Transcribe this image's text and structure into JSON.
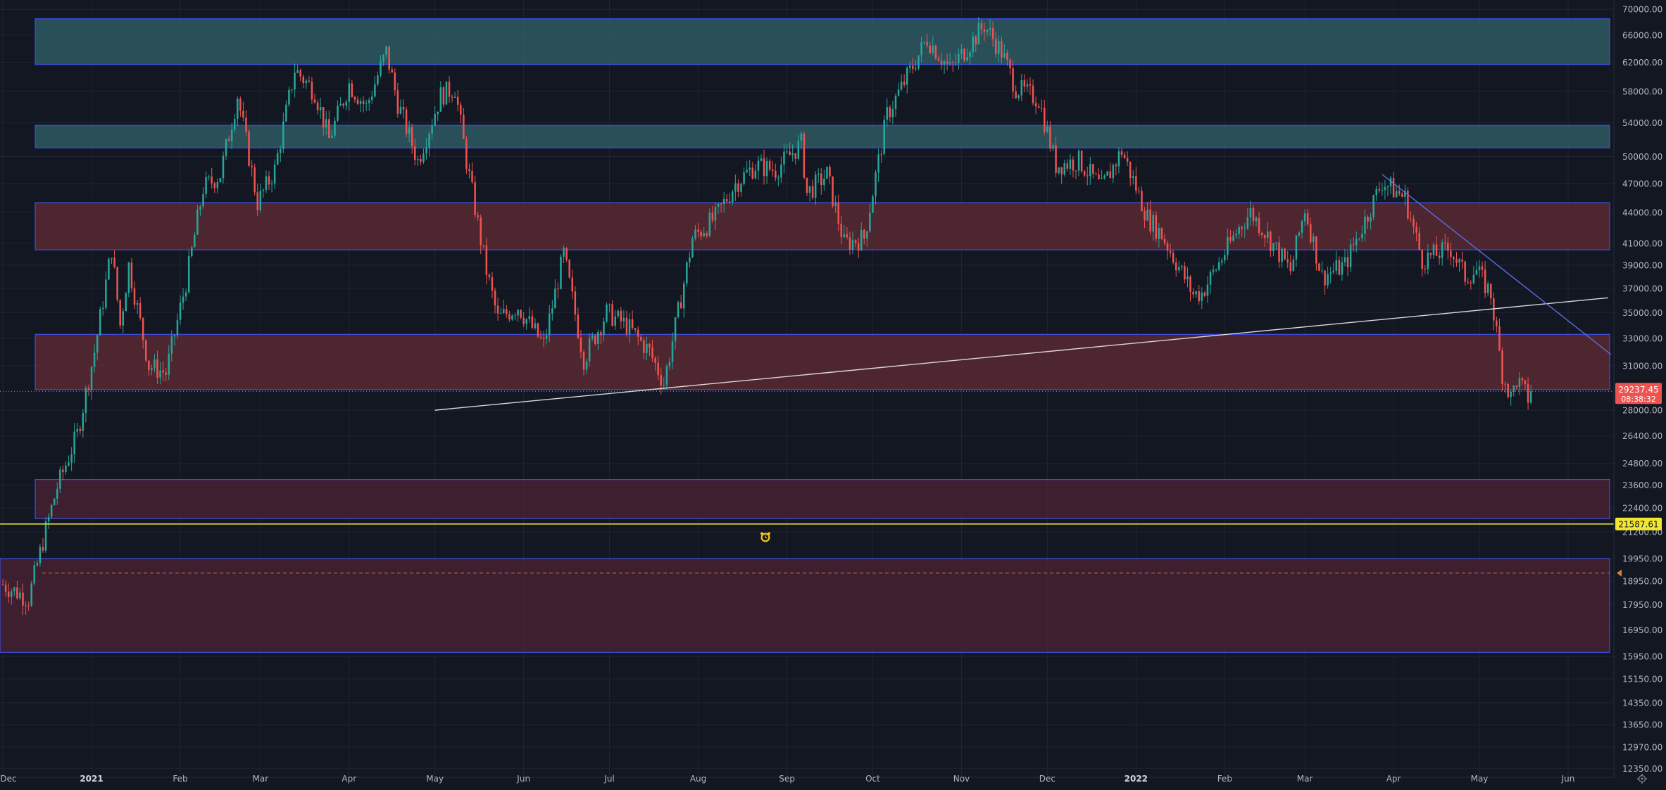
{
  "chart_data": {
    "type": "candlestick",
    "symbol_note": "",
    "x_axis": {
      "tick_labels": [
        "Dec",
        "2021",
        "Feb",
        "Mar",
        "Apr",
        "May",
        "Jun",
        "Jul",
        "Aug",
        "Sep",
        "Oct",
        "Nov",
        "Dec",
        "2022",
        "Feb",
        "Mar",
        "Apr",
        "May",
        "Jun"
      ],
      "tick_dates": [
        "2020-12-01",
        "2021-01-01",
        "2021-02-01",
        "2021-03-01",
        "2021-04-01",
        "2021-05-01",
        "2021-06-01",
        "2021-07-01",
        "2021-08-01",
        "2021-09-01",
        "2021-10-01",
        "2021-11-01",
        "2021-12-01",
        "2022-01-01",
        "2022-02-01",
        "2022-03-01",
        "2022-04-01",
        "2022-05-01",
        "2022-06-01"
      ],
      "range": [
        "2020-11-30",
        "2022-06-17"
      ]
    },
    "y_axis": {
      "scale": "log",
      "range": [
        12100,
        71500
      ],
      "tick_labels": [
        "70000.00",
        "66000.00",
        "62000.00",
        "58000.00",
        "54000.00",
        "50000.00",
        "47000.00",
        "44000.00",
        "41000.00",
        "39000.00",
        "37000.00",
        "35000.00",
        "33000.00",
        "31000.00",
        "28000.00",
        "26400.00",
        "24800.00",
        "23600.00",
        "22400.00",
        "21200.00",
        "19950.00",
        "18950.00",
        "17950.00",
        "16950.00",
        "15950.00",
        "15150.00",
        "14350.00",
        "13650.00",
        "12970.00",
        "12350.00"
      ],
      "tick_values": [
        70000,
        66000,
        62000,
        58000,
        54000,
        50000,
        47000,
        44000,
        41000,
        39000,
        37000,
        35000,
        33000,
        31000,
        28000,
        26400,
        24800,
        23600,
        22400,
        21200,
        19950,
        18950,
        17950,
        16950,
        15950,
        15150,
        14350,
        13650,
        12970,
        12350
      ]
    },
    "grid": true,
    "price_series": [
      [
        "2020-12-01",
        18800
      ],
      [
        "2020-12-10",
        18200
      ],
      [
        "2020-12-16",
        21300
      ],
      [
        "2020-12-20",
        23500
      ],
      [
        "2020-12-27",
        26500
      ],
      [
        "2021-01-02",
        32000
      ],
      [
        "2021-01-08",
        40500
      ],
      [
        "2021-01-11",
        34000
      ],
      [
        "2021-01-14",
        39000
      ],
      [
        "2021-01-21",
        31000
      ],
      [
        "2021-01-27",
        30500
      ],
      [
        "2021-02-03",
        37500
      ],
      [
        "2021-02-09",
        46500
      ],
      [
        "2021-02-15",
        48000
      ],
      [
        "2021-02-21",
        57500
      ],
      [
        "2021-02-28",
        45000
      ],
      [
        "2021-03-06",
        48500
      ],
      [
        "2021-03-13",
        61000
      ],
      [
        "2021-03-20",
        58000
      ],
      [
        "2021-03-25",
        52000
      ],
      [
        "2021-04-01",
        59000
      ],
      [
        "2021-04-07",
        56000
      ],
      [
        "2021-04-14",
        63500
      ],
      [
        "2021-04-18",
        56500
      ],
      [
        "2021-04-25",
        49500
      ],
      [
        "2021-05-03",
        57500
      ],
      [
        "2021-05-08",
        58500
      ],
      [
        "2021-05-12",
        49500
      ],
      [
        "2021-05-19",
        38500
      ],
      [
        "2021-05-23",
        34500
      ],
      [
        "2021-05-30",
        35500
      ],
      [
        "2021-06-08",
        32500
      ],
      [
        "2021-06-15",
        40000
      ],
      [
        "2021-06-22",
        31500
      ],
      [
        "2021-06-30",
        35000
      ],
      [
        "2021-07-07",
        34000
      ],
      [
        "2021-07-15",
        32000
      ],
      [
        "2021-07-20",
        29800
      ],
      [
        "2021-07-25",
        35000
      ],
      [
        "2021-07-30",
        41500
      ],
      [
        "2021-08-07",
        43500
      ],
      [
        "2021-08-14",
        47000
      ],
      [
        "2021-08-21",
        49000
      ],
      [
        "2021-08-28",
        48500
      ],
      [
        "2021-09-06",
        51500
      ],
      [
        "2021-09-08",
        46000
      ],
      [
        "2021-09-15",
        48000
      ],
      [
        "2021-09-21",
        41000
      ],
      [
        "2021-09-28",
        41500
      ],
      [
        "2021-10-06",
        55000
      ],
      [
        "2021-10-15",
        61500
      ],
      [
        "2021-10-20",
        65500
      ],
      [
        "2021-10-28",
        61000
      ],
      [
        "2021-11-09",
        67500
      ],
      [
        "2021-11-15",
        63500
      ],
      [
        "2021-11-20",
        58500
      ],
      [
        "2021-11-28",
        57000
      ],
      [
        "2021-12-04",
        49000
      ],
      [
        "2021-12-12",
        49500
      ],
      [
        "2021-12-20",
        46500
      ],
      [
        "2021-12-27",
        50700
      ],
      [
        "2022-01-05",
        43500
      ],
      [
        "2022-01-10",
        41800
      ],
      [
        "2022-01-21",
        36500
      ],
      [
        "2022-01-24",
        36600
      ],
      [
        "2022-02-06",
        42500
      ],
      [
        "2022-02-10",
        44000
      ],
      [
        "2022-02-14",
        42500
      ],
      [
        "2022-02-24",
        38500
      ],
      [
        "2022-03-01",
        44400
      ],
      [
        "2022-03-07",
        38000
      ],
      [
        "2022-03-15",
        39000
      ],
      [
        "2022-03-28",
        47200
      ],
      [
        "2022-04-05",
        45500
      ],
      [
        "2022-04-11",
        39500
      ],
      [
        "2022-04-21",
        40500
      ],
      [
        "2022-04-26",
        38000
      ],
      [
        "2022-04-30",
        38500
      ],
      [
        "2022-05-05",
        36500
      ],
      [
        "2022-05-09",
        30500
      ],
      [
        "2022-05-12",
        28800
      ],
      [
        "2022-05-14",
        30000
      ],
      [
        "2022-05-18",
        28800
      ],
      [
        "2022-05-19",
        29237
      ]
    ],
    "zones": [
      {
        "low": 61700,
        "high": 68500,
        "color": "#2f5f68",
        "label": "resistance-zone-top"
      },
      {
        "low": 51000,
        "high": 53700,
        "color": "#2f5f68",
        "label": "resistance-zone-upper"
      },
      {
        "low": 40400,
        "high": 45000,
        "color": "#5c2a35",
        "label": "zone-middle"
      },
      {
        "low": 29350,
        "high": 33300,
        "color": "#5c2a35",
        "label": "zone-lower"
      },
      {
        "low": 21850,
        "high": 23900,
        "color": "#4a2233",
        "label": "zone-low"
      },
      {
        "low": 16100,
        "high": 19950,
        "color": "#4a2233",
        "label": "zone-bottom"
      }
    ],
    "trendlines": [
      {
        "from": [
          "2021-05-01",
          28000
        ],
        "to": [
          "2022-06-15",
          36200
        ],
        "color": "#d8d8d8",
        "label": "rising-support-line"
      },
      {
        "from": [
          "2022-03-28",
          48000
        ],
        "to": [
          "2022-06-16",
          31800
        ],
        "color": "#5b6ee1",
        "label": "descending-trendline"
      }
    ],
    "horizontal_lines": [
      {
        "value": 21587.61,
        "color": "#f2e633",
        "style": "solid",
        "label": "price-alert-line"
      },
      {
        "value": 19300,
        "color": "#d0853a",
        "style": "dashed",
        "label": "dashed-level-line"
      }
    ],
    "current_price": {
      "value": 29237.45,
      "label": "29237.45",
      "countdown": "08:38:32",
      "color": "#ef5350"
    },
    "alert_price": {
      "value": 21587.61,
      "label": "21587.61",
      "color": "#f2e633"
    },
    "colors": {
      "up": "#26a69a",
      "down": "#ef5350",
      "background": "#131722",
      "grid": "#1f2433",
      "axis_text": "#b2b5be",
      "zone_border": "#3d4fe0"
    }
  }
}
